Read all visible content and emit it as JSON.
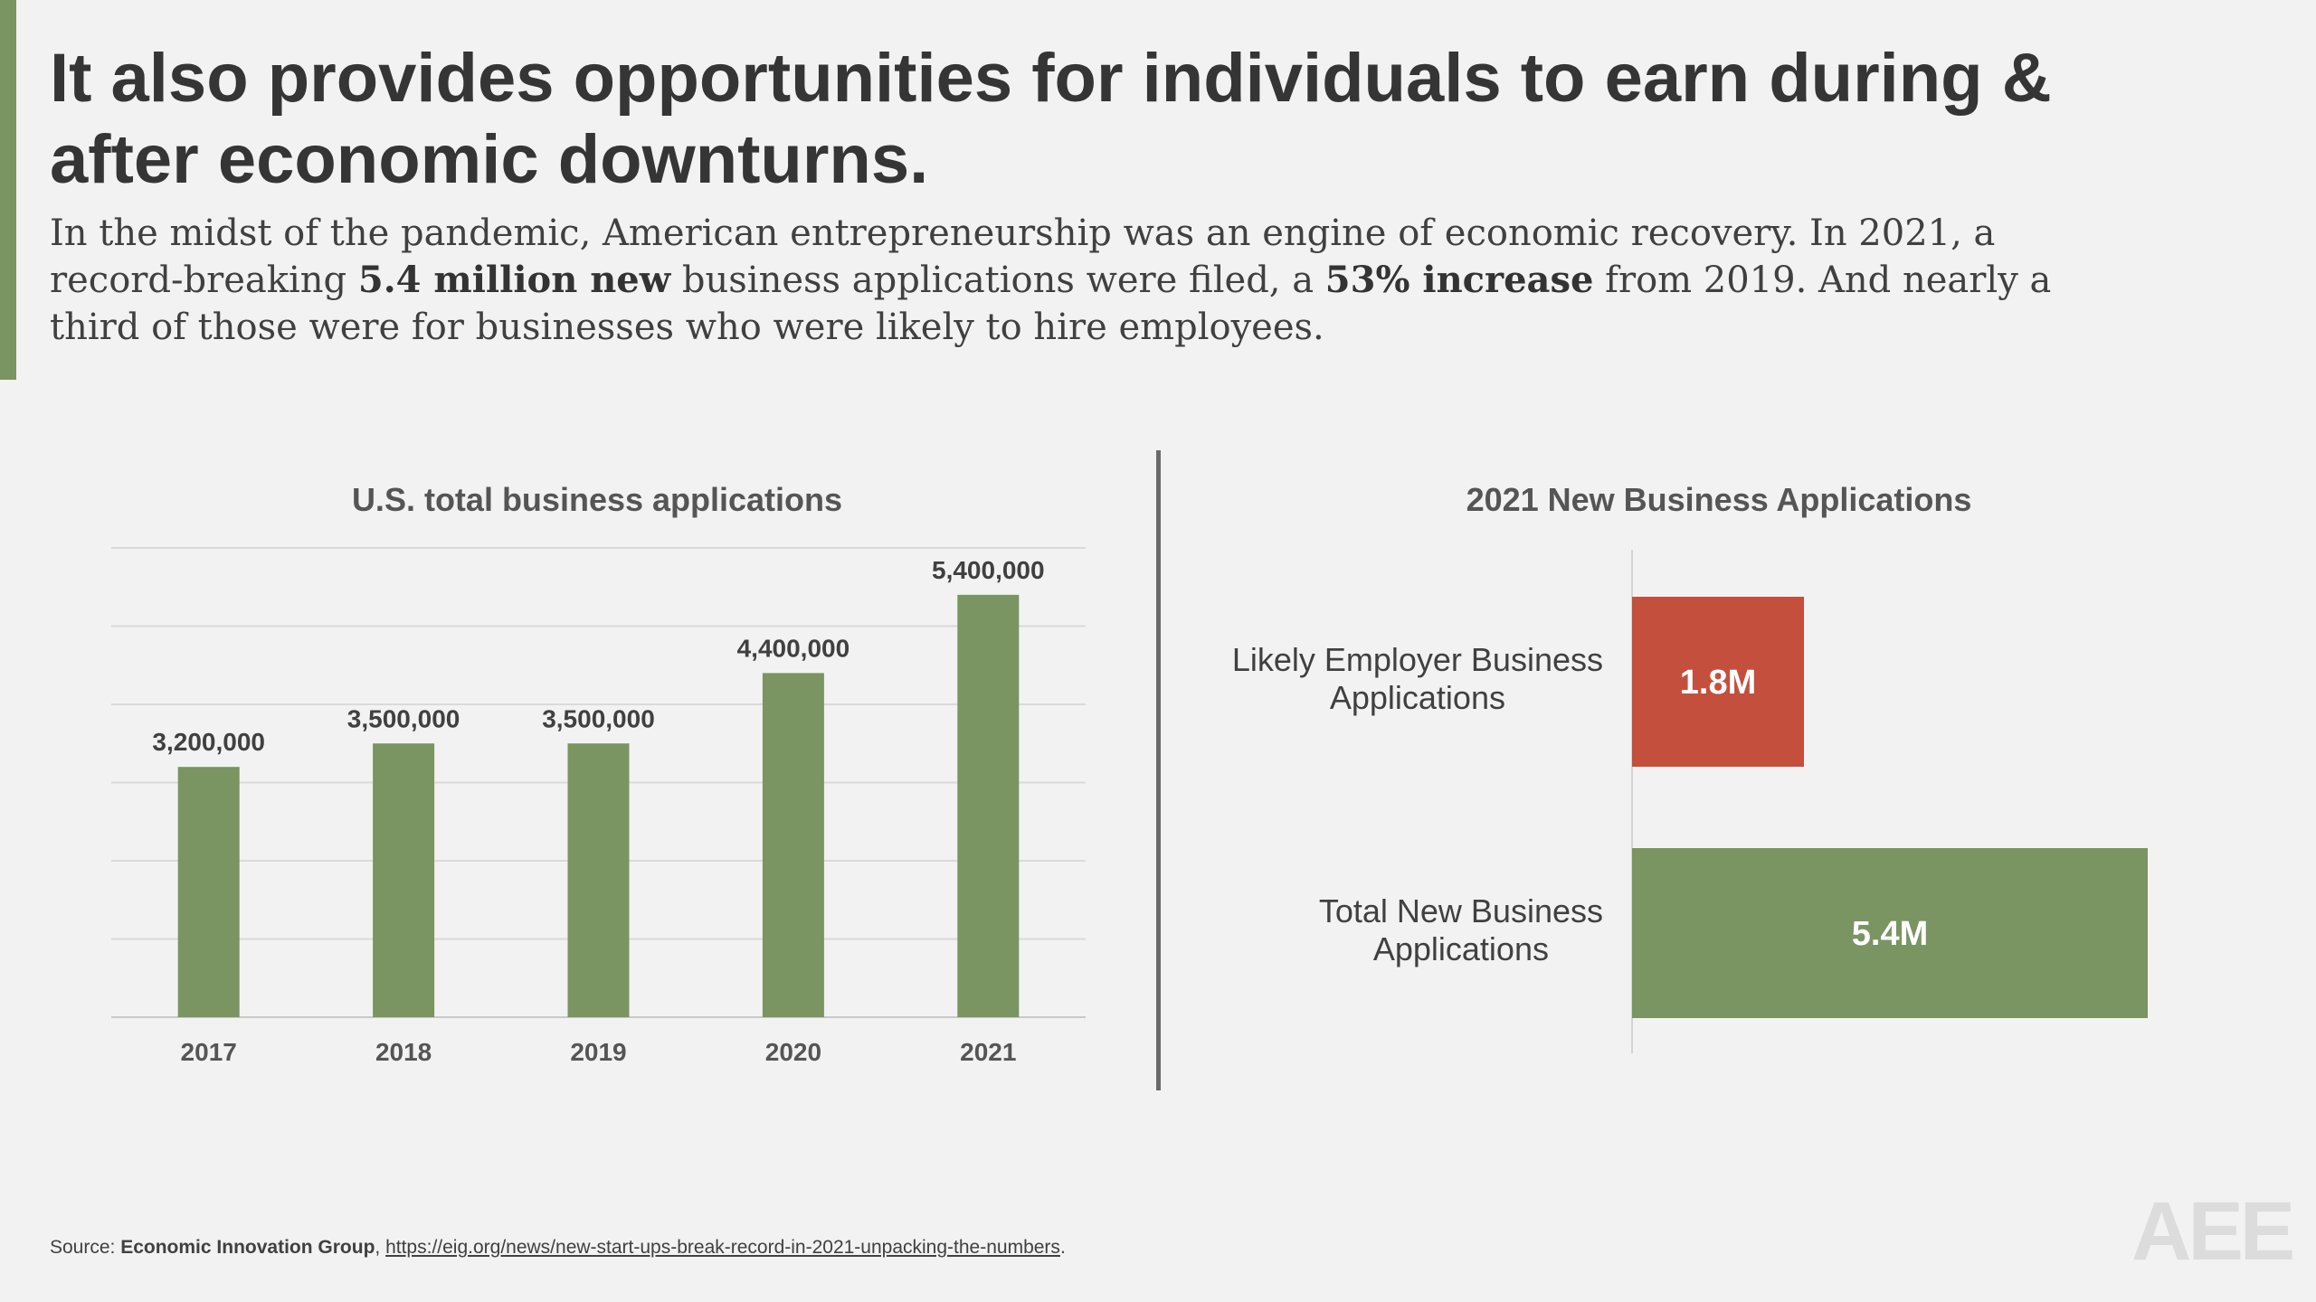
{
  "slide": {
    "title": "It also provides opportunities for individuals to earn during & after economic downturns.",
    "intro": {
      "p1": "In the midst of the pandemic, American entrepreneurship was an engine of economic recovery. In 2021, a record-breaking ",
      "b1": "5.4 million new",
      "p2": " business applications were filed, a ",
      "b2": "53% increase",
      "p3": " from 2019. And nearly a third of those were for businesses who were likely to hire employees."
    },
    "source": {
      "prefix": "Source: ",
      "org": "Economic Innovation Group",
      "sep": ", ",
      "url": "https://eig.org/news/new-start-ups-break-record-in-2021-unpacking-the-numbers",
      "suffix": "."
    },
    "logo": "AEE",
    "colors": {
      "accent": "#7a9462",
      "bar_green": "#7a9462",
      "bar_red": "#c44f3c"
    }
  },
  "chart_data": [
    {
      "type": "bar",
      "title": "U.S. total business applications",
      "categories": [
        "2017",
        "2018",
        "2019",
        "2020",
        "2021"
      ],
      "values": [
        3200000,
        3500000,
        3500000,
        4400000,
        5400000
      ],
      "value_labels": [
        "3,200,000",
        "3,500,000",
        "3,500,000",
        "4,400,000",
        "5,400,000"
      ],
      "ylim": [
        0,
        6000000
      ],
      "grid": true,
      "color": "#7a9462"
    },
    {
      "type": "bar",
      "orientation": "horizontal",
      "title": "2021 New Business Applications",
      "categories": [
        "Likely Employer Business Applications",
        "Total New Business Applications"
      ],
      "values": [
        1.8,
        5.4
      ],
      "value_labels": [
        "1.8M",
        "5.4M"
      ],
      "units": "millions",
      "colors": [
        "#c44f3c",
        "#7a9462"
      ]
    }
  ]
}
